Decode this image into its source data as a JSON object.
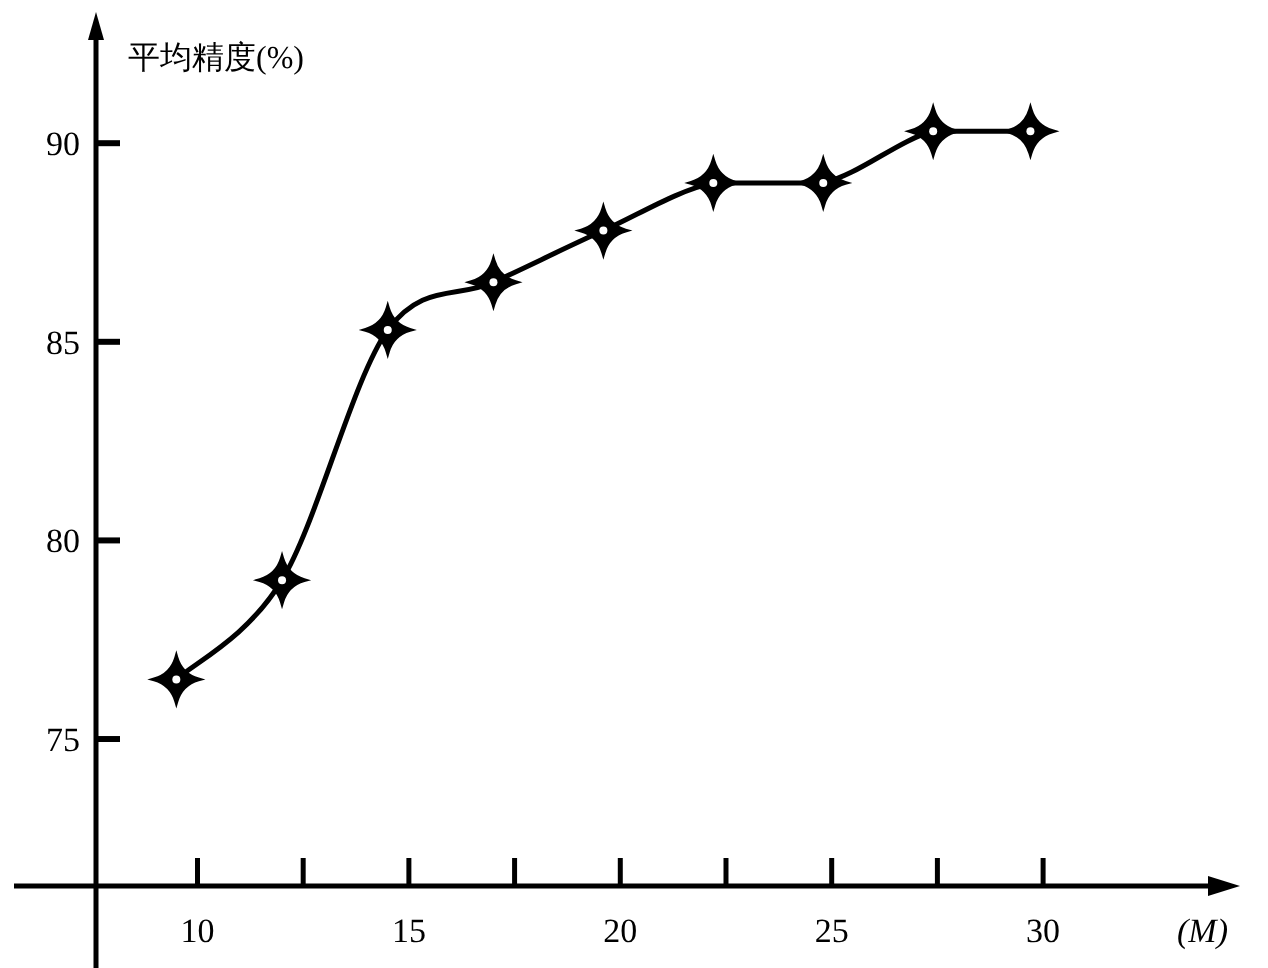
{
  "chart_data": {
    "type": "line",
    "ylabel": "平均精度(%)",
    "xlabel": "(M)",
    "x": [
      9.5,
      12,
      14.5,
      17,
      19.6,
      22.2,
      24.8,
      27.4,
      29.7
    ],
    "series": [
      {
        "color": "#000000",
        "values": [
          76.5,
          79.0,
          85.3,
          86.5,
          87.8,
          89.0,
          89.0,
          90.3,
          90.3
        ]
      }
    ],
    "xlim": [
      7.6,
      33.9
    ],
    "ylim": [
      71.3,
      92.9
    ],
    "xticks": [
      10,
      {
        "value": 12.5,
        "label": null
      },
      15,
      {
        "value": 17.5,
        "label": null
      },
      20,
      {
        "value": 22.5,
        "label": null
      },
      25,
      {
        "value": 27.5,
        "label": null
      },
      30
    ],
    "yticks": [
      75,
      80,
      85,
      90
    ],
    "grid": false,
    "marker": "star",
    "line_style": "solid"
  }
}
